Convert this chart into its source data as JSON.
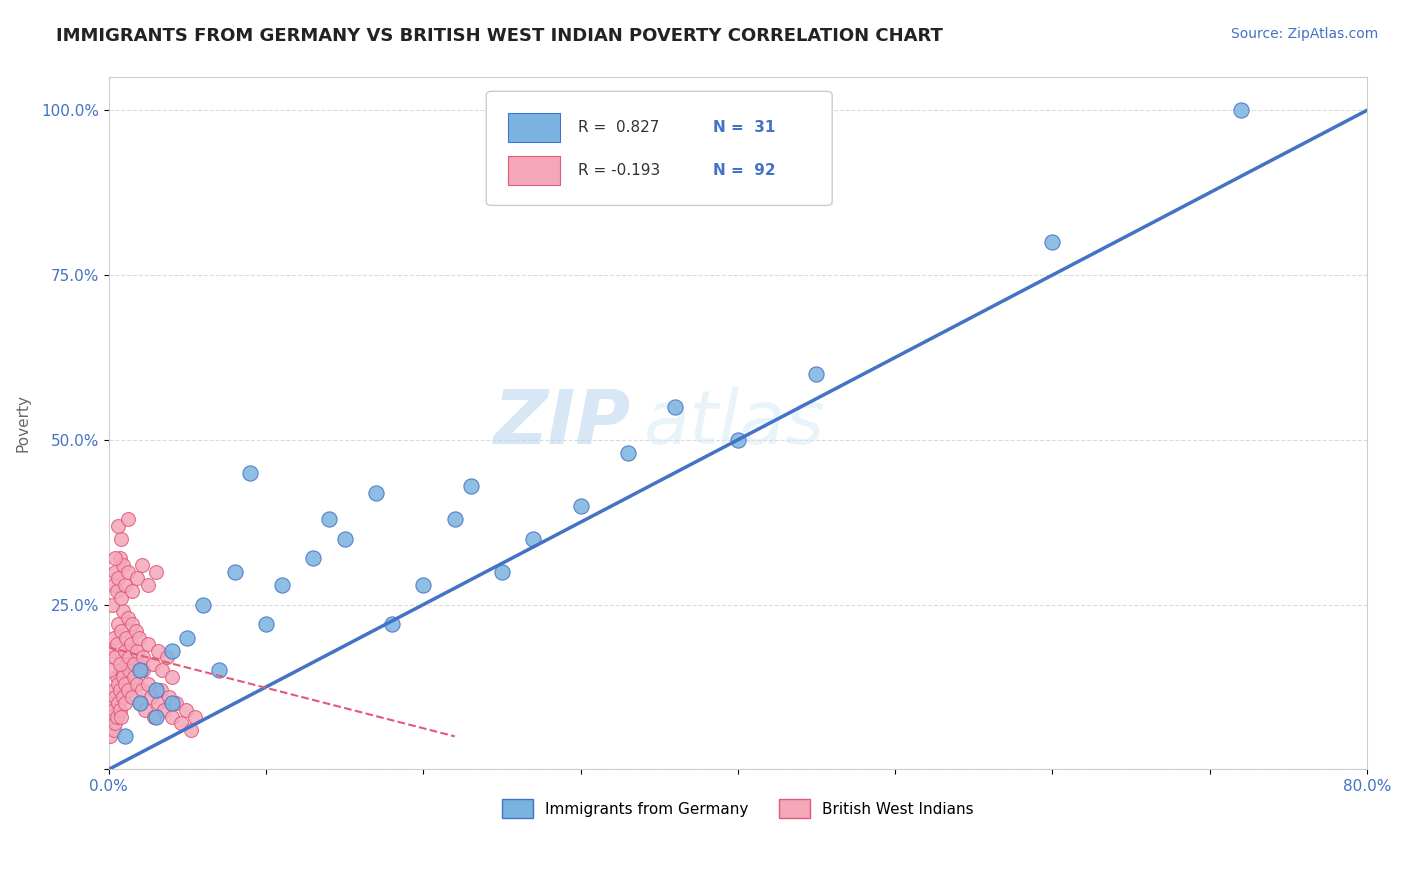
{
  "title": "IMMIGRANTS FROM GERMANY VS BRITISH WEST INDIAN POVERTY CORRELATION CHART",
  "source_text": "Source: ZipAtlas.com",
  "xlabel": "",
  "ylabel": "Poverty",
  "xlim": [
    0.0,
    0.8
  ],
  "ylim": [
    0.0,
    1.05
  ],
  "xticks": [
    0.0,
    0.1,
    0.2,
    0.3,
    0.4,
    0.5,
    0.6,
    0.7,
    0.8
  ],
  "xticklabels": [
    "0.0%",
    "",
    "",
    "",
    "",
    "",
    "",
    "",
    "80.0%"
  ],
  "yticks": [
    0.0,
    0.25,
    0.5,
    0.75,
    1.0
  ],
  "yticklabels": [
    "",
    "25.0%",
    "50.0%",
    "75.0%",
    "100.0%"
  ],
  "blue_color": "#7ab3e0",
  "blue_dark": "#4472c4",
  "pink_color": "#f4a7b9",
  "pink_dark": "#e05a7a",
  "legend_R_blue": "R =  0.827",
  "legend_N_blue": "N =  31",
  "legend_R_pink": "R = -0.193",
  "legend_N_pink": "N =  92",
  "watermark_zip": "ZIP",
  "watermark_atlas": "atlas",
  "background_color": "#ffffff",
  "grid_color": "#cccccc",
  "blue_scatter_x": [
    0.01,
    0.02,
    0.02,
    0.03,
    0.03,
    0.04,
    0.04,
    0.05,
    0.06,
    0.07,
    0.08,
    0.09,
    0.1,
    0.11,
    0.13,
    0.14,
    0.15,
    0.17,
    0.18,
    0.2,
    0.22,
    0.23,
    0.25,
    0.27,
    0.3,
    0.33,
    0.36,
    0.4,
    0.45,
    0.6,
    0.72
  ],
  "blue_scatter_y": [
    0.05,
    0.1,
    0.15,
    0.08,
    0.12,
    0.18,
    0.1,
    0.2,
    0.25,
    0.15,
    0.3,
    0.45,
    0.22,
    0.28,
    0.32,
    0.38,
    0.35,
    0.42,
    0.22,
    0.28,
    0.38,
    0.43,
    0.3,
    0.35,
    0.4,
    0.48,
    0.55,
    0.5,
    0.6,
    0.8,
    1.0
  ],
  "pink_scatter_x": [
    0.001,
    0.002,
    0.002,
    0.003,
    0.003,
    0.003,
    0.004,
    0.004,
    0.005,
    0.005,
    0.006,
    0.006,
    0.007,
    0.007,
    0.008,
    0.008,
    0.009,
    0.009,
    0.01,
    0.01,
    0.011,
    0.012,
    0.013,
    0.014,
    0.015,
    0.016,
    0.017,
    0.018,
    0.019,
    0.02,
    0.021,
    0.022,
    0.023,
    0.025,
    0.027,
    0.029,
    0.031,
    0.033,
    0.035,
    0.038,
    0.04,
    0.043,
    0.046,
    0.049,
    0.052,
    0.055,
    0.001,
    0.002,
    0.003,
    0.004,
    0.005,
    0.006,
    0.007,
    0.008,
    0.009,
    0.01,
    0.011,
    0.012,
    0.013,
    0.014,
    0.015,
    0.016,
    0.017,
    0.018,
    0.019,
    0.02,
    0.022,
    0.025,
    0.028,
    0.031,
    0.034,
    0.037,
    0.04,
    0.002,
    0.003,
    0.004,
    0.005,
    0.006,
    0.007,
    0.008,
    0.009,
    0.01,
    0.012,
    0.015,
    0.018,
    0.021,
    0.025,
    0.03,
    0.004,
    0.008,
    0.006,
    0.012
  ],
  "pink_scatter_y": [
    0.05,
    0.08,
    0.1,
    0.06,
    0.09,
    0.12,
    0.07,
    0.11,
    0.14,
    0.08,
    0.1,
    0.13,
    0.09,
    0.12,
    0.15,
    0.08,
    0.11,
    0.14,
    0.1,
    0.13,
    0.16,
    0.12,
    0.15,
    0.18,
    0.11,
    0.14,
    0.17,
    0.13,
    0.16,
    0.1,
    0.12,
    0.15,
    0.09,
    0.13,
    0.11,
    0.08,
    0.1,
    0.12,
    0.09,
    0.11,
    0.08,
    0.1,
    0.07,
    0.09,
    0.06,
    0.08,
    0.15,
    0.18,
    0.2,
    0.17,
    0.19,
    0.22,
    0.16,
    0.21,
    0.24,
    0.18,
    0.2,
    0.23,
    0.17,
    0.19,
    0.22,
    0.16,
    0.21,
    0.18,
    0.2,
    0.15,
    0.17,
    0.19,
    0.16,
    0.18,
    0.15,
    0.17,
    0.14,
    0.25,
    0.28,
    0.3,
    0.27,
    0.29,
    0.32,
    0.26,
    0.31,
    0.28,
    0.3,
    0.27,
    0.29,
    0.31,
    0.28,
    0.3,
    0.32,
    0.35,
    0.37,
    0.38
  ],
  "blue_line_x": [
    0.0,
    0.8
  ],
  "blue_line_y": [
    0.0,
    1.0
  ],
  "pink_line_x": [
    0.0,
    0.22
  ],
  "pink_line_y": [
    0.185,
    0.05
  ]
}
